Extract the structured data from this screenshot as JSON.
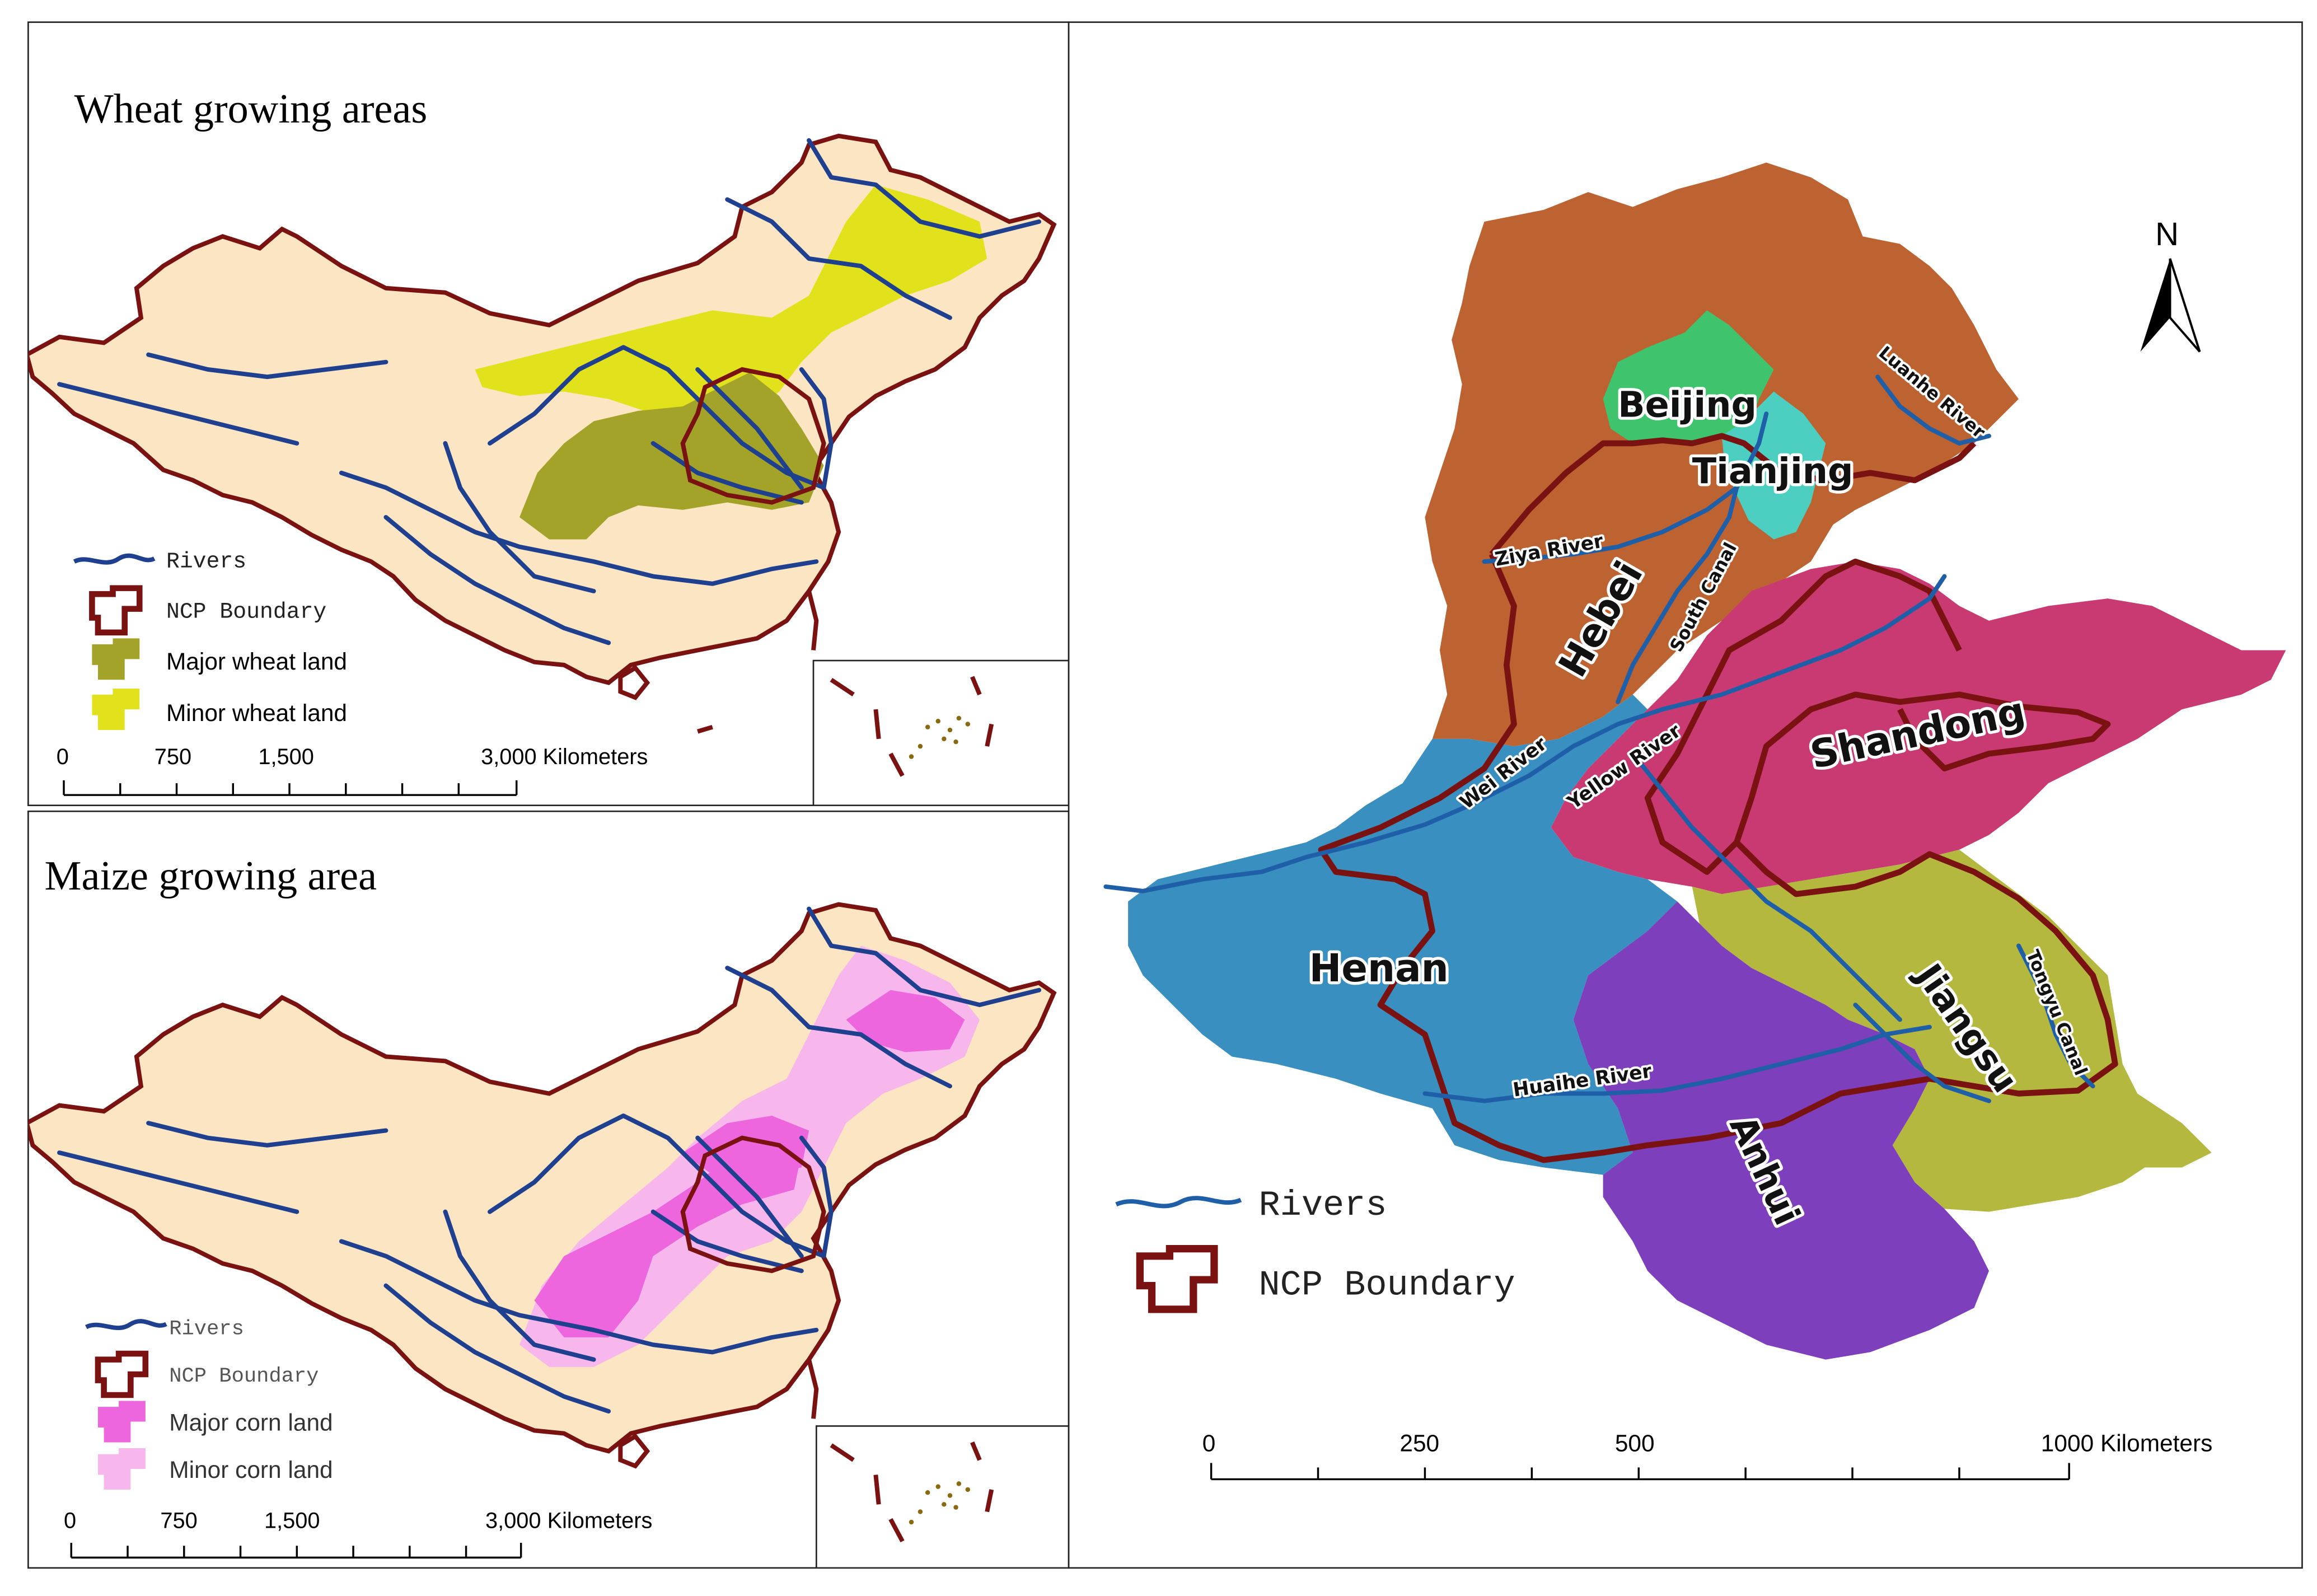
{
  "wheat_panel": {
    "title": "Wheat growing areas",
    "legend": {
      "rivers": "Rivers",
      "ncp_boundary": "NCP Boundary",
      "major": "Major wheat land",
      "minor": "Minor wheat land"
    },
    "scale_ticks": [
      "0",
      "750",
      "1,500",
      "3,000 Kilometers"
    ]
  },
  "maize_panel": {
    "title": "Maize growing area",
    "legend": {
      "rivers": "Rivers",
      "ncp_boundary": "NCP Boundary",
      "major": "Major corn land",
      "minor": "Minor corn land"
    },
    "scale_ticks": [
      "0",
      "750",
      "1,500",
      "3,000 Kilometers"
    ]
  },
  "ncp_panel": {
    "north_label": "N",
    "provinces": {
      "beijing": "Beijing",
      "tianjing": "Tianjing",
      "hebei": "Hebei",
      "shandong": "Shandong",
      "henan": "Henan",
      "jiangsu": "Jiangsu",
      "anhui": "Anhui"
    },
    "rivers": {
      "ziya": "Ziya River",
      "luanhe": "Luanhe River",
      "south_canal": "South Canal",
      "wei": "Wei River",
      "yellow": "Yellow River",
      "huaihe": "Huaihe River",
      "tongyu": "Tongyu Canal"
    },
    "legend": {
      "rivers": "Rivers",
      "ncp_boundary": "NCP Boundary"
    },
    "scale_ticks": [
      "0",
      "250",
      "500",
      "1000 Kilometers"
    ]
  },
  "colors": {
    "land": "#fbe5c3",
    "river": "#1f3f8f",
    "ncp_boundary": "#7a1212",
    "major_wheat": "#a3a32a",
    "minor_wheat": "#e2e21c",
    "major_corn": "#ee66dd",
    "minor_corn": "#f7b7ec",
    "beijing": "#3fc46d",
    "tianjing": "#4ccfc0",
    "hebei": "#bd6332",
    "shandong": "#c93a72",
    "henan": "#3a8fc1",
    "jiangsu": "#b4b83e",
    "anhui": "#7d3fbb"
  }
}
